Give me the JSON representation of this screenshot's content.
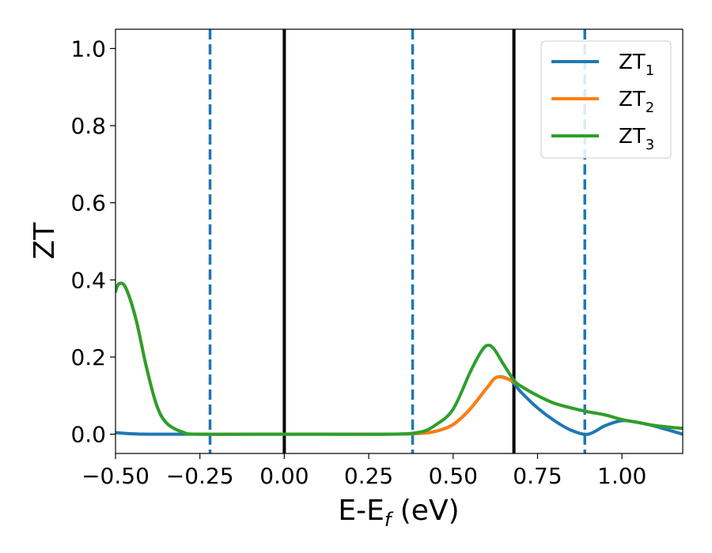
{
  "chart_data": {
    "type": "line",
    "title": "",
    "xlabel": "E-E",
    "xlabel_sub": "f",
    "xlabel_unit": " (eV)",
    "ylabel": "ZT",
    "xlim": [
      -0.5,
      1.18
    ],
    "ylim": [
      -0.05,
      1.05
    ],
    "grid": false,
    "legend_position": "top-right",
    "x_ticks": [
      -0.5,
      -0.25,
      0.0,
      0.25,
      0.5,
      0.75,
      1.0
    ],
    "x_tick_labels": [
      "−0.50",
      "−0.25",
      "0.00",
      "0.25",
      "0.50",
      "0.75",
      "1.00"
    ],
    "y_ticks": [
      0.0,
      0.2,
      0.4,
      0.6,
      0.8,
      1.0
    ],
    "y_tick_labels": [
      "0.0",
      "0.2",
      "0.4",
      "0.6",
      "0.8",
      "1.0"
    ],
    "vertical_lines": [
      {
        "x": -0.22,
        "style": "dashed",
        "color": "#1f77b4"
      },
      {
        "x": 0.0,
        "style": "solid",
        "color": "#000000"
      },
      {
        "x": 0.38,
        "style": "dashed",
        "color": "#1f77b4"
      },
      {
        "x": 0.68,
        "style": "solid",
        "color": "#000000"
      },
      {
        "x": 0.89,
        "style": "dashed",
        "color": "#1f77b4"
      }
    ],
    "series": [
      {
        "name": "ZT",
        "sub": "1",
        "color": "#1f77b4",
        "x": [
          -0.5,
          -0.45,
          -0.4,
          -0.3,
          0.0,
          0.3,
          0.4,
          0.45,
          0.5,
          0.55,
          0.6,
          0.63,
          0.67,
          0.7,
          0.75,
          0.8,
          0.85,
          0.9,
          0.95,
          1.0,
          1.05,
          1.1,
          1.18
        ],
        "y": [
          0.004,
          0.001,
          0.0,
          0.0,
          0.0,
          0.0,
          0.002,
          0.008,
          0.025,
          0.065,
          0.12,
          0.148,
          0.14,
          0.11,
          0.068,
          0.035,
          0.01,
          0.0,
          0.022,
          0.035,
          0.03,
          0.02,
          0.0
        ]
      },
      {
        "name": "ZT",
        "sub": "2",
        "color": "#ff7f0e",
        "x": [
          -0.5,
          -0.49,
          -0.47,
          -0.44,
          -0.41,
          -0.38,
          -0.35,
          -0.3,
          -0.25,
          0.0,
          0.3,
          0.4,
          0.45,
          0.5,
          0.55,
          0.6,
          0.63,
          0.67,
          0.7,
          0.75,
          0.8,
          0.85,
          0.9,
          0.95,
          1.0,
          1.05,
          1.1,
          1.18
        ],
        "y": [
          0.37,
          0.39,
          0.38,
          0.3,
          0.18,
          0.08,
          0.03,
          0.005,
          0.0,
          0.0,
          0.0,
          0.002,
          0.008,
          0.025,
          0.065,
          0.12,
          0.148,
          0.14,
          0.125,
          0.1,
          0.08,
          0.068,
          0.058,
          0.05,
          0.038,
          0.03,
          0.022,
          0.015
        ]
      },
      {
        "name": "ZT",
        "sub": "3",
        "color": "#2ca02c",
        "x": [
          -0.5,
          -0.49,
          -0.47,
          -0.44,
          -0.41,
          -0.38,
          -0.35,
          -0.3,
          -0.25,
          0.0,
          0.3,
          0.4,
          0.45,
          0.5,
          0.55,
          0.58,
          0.6,
          0.62,
          0.65,
          0.68,
          0.7,
          0.75,
          0.8,
          0.85,
          0.9,
          0.95,
          1.0,
          1.05,
          1.1,
          1.18
        ],
        "y": [
          0.37,
          0.39,
          0.38,
          0.3,
          0.18,
          0.08,
          0.03,
          0.005,
          0.0,
          0.0,
          0.0,
          0.005,
          0.025,
          0.065,
          0.16,
          0.21,
          0.23,
          0.222,
          0.18,
          0.14,
          0.125,
          0.1,
          0.08,
          0.068,
          0.058,
          0.05,
          0.038,
          0.03,
          0.022,
          0.015
        ]
      }
    ]
  }
}
